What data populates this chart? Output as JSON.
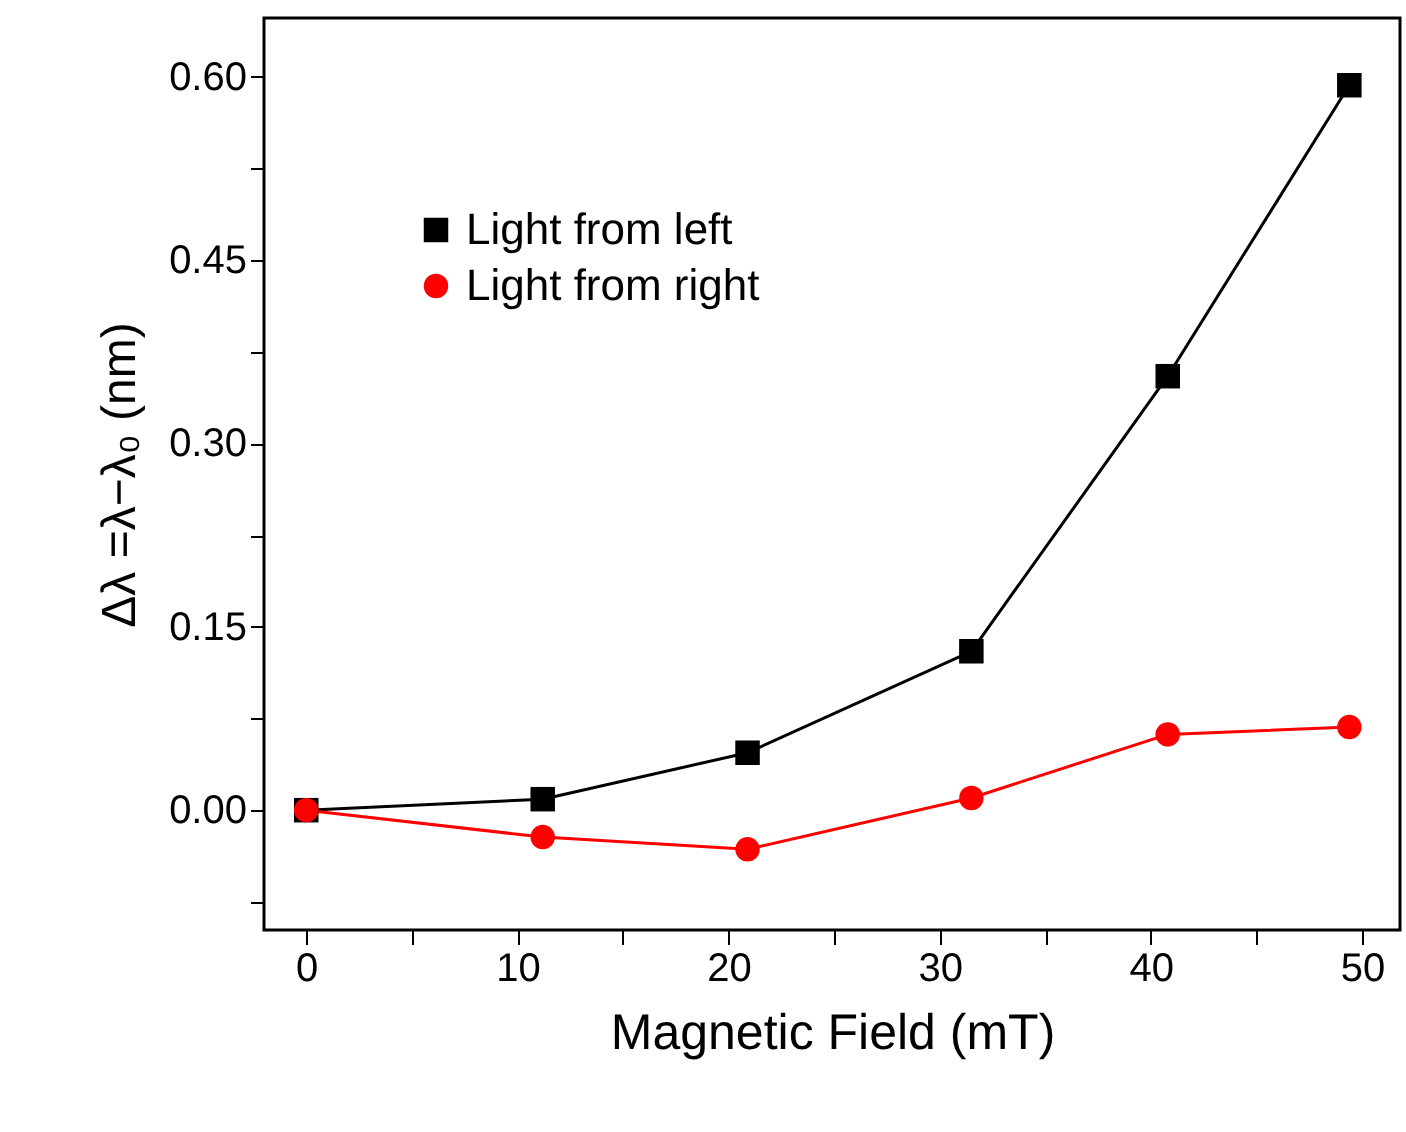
{
  "chart_data": {
    "type": "line",
    "xlabel": "Magnetic Field (mT)",
    "ylabel": "Δλ =λ−λ₀ (nm)",
    "x": [
      0,
      11.2,
      20.9,
      31.5,
      40.8,
      49.4
    ],
    "series": [
      {
        "name": "Light from left",
        "color": "#000000",
        "marker": "square",
        "values": [
          0,
          0.009,
          0.047,
          0.13,
          0.355,
          0.593
        ]
      },
      {
        "name": "Light from right",
        "color": "#ff0000",
        "marker": "circle",
        "values": [
          0,
          -0.022,
          -0.032,
          0.01,
          0.062,
          0.068
        ]
      }
    ],
    "xlim": [
      -2,
      51.8
    ],
    "ylim": [
      -0.098,
      0.648
    ],
    "xticks": [
      0,
      {
        "value": 5,
        "label": null
      },
      10,
      {
        "value": 15,
        "label": null
      },
      20,
      {
        "value": 25,
        "label": null
      },
      30,
      {
        "value": 35,
        "label": null
      },
      40,
      {
        "value": 45,
        "label": null
      },
      50
    ],
    "yticks": [
      {
        "value": -0.075,
        "label": null
      },
      {
        "value": 0,
        "label": "0.00"
      },
      {
        "value": 0.075,
        "label": null
      },
      0.15,
      {
        "value": 0.225,
        "label": null
      },
      {
        "value": 0.3,
        "label": "0.30"
      },
      {
        "value": 0.375,
        "label": null
      },
      0.45,
      {
        "value": 0.525,
        "label": null
      },
      {
        "value": 0.6,
        "label": "0.60"
      }
    ],
    "legend": "top left",
    "grid": false,
    "line_style": "solid"
  }
}
